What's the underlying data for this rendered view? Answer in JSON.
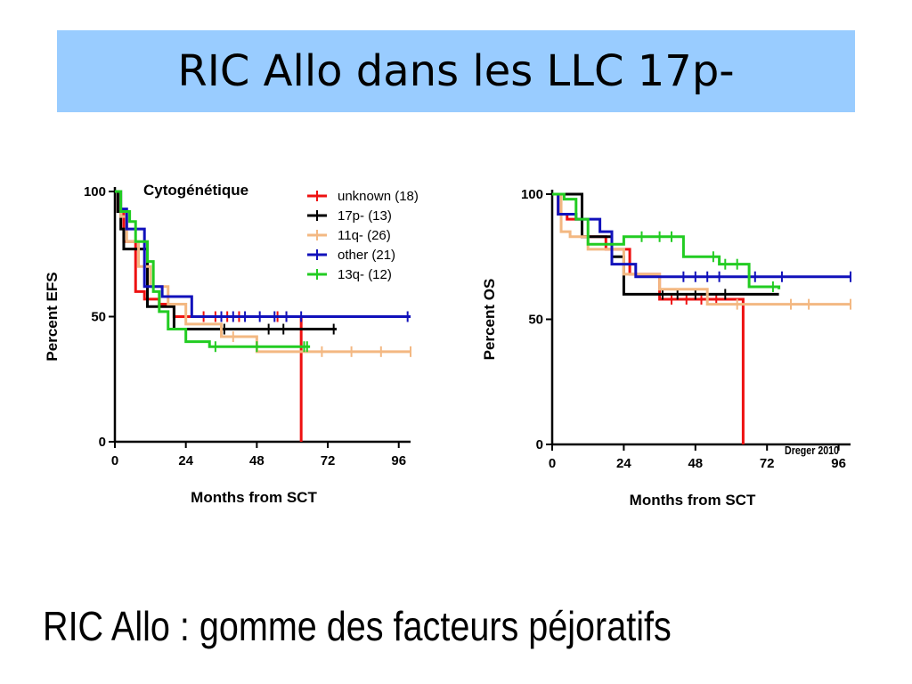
{
  "slide": {
    "title": "RIC Allo dans les LLC 17p-",
    "footer": "RIC Allo : gomme des facteurs péjoratifs",
    "citation": "Dreger 2010"
  },
  "chart_data": [
    {
      "type": "line",
      "title": "Cytogénétique",
      "xlabel": "Months from SCT",
      "ylabel": "Percent EFS",
      "xlim": [
        0,
        100
      ],
      "ylim": [
        0,
        100
      ],
      "xticks": [
        0,
        24,
        48,
        72,
        96
      ],
      "yticks": [
        0,
        50,
        100
      ],
      "legend_position": "top-right",
      "series": [
        {
          "name": "unknown (18)",
          "color": "#ee1111",
          "x": [
            0,
            1,
            3,
            7,
            10,
            15,
            20,
            24,
            63,
            63
          ],
          "y": [
            100,
            92,
            80,
            60,
            57,
            55,
            50,
            50,
            50,
            0
          ],
          "censored_x": [
            30,
            34,
            38,
            42,
            55,
            58
          ]
        },
        {
          "name": "17p- (13)",
          "color": "#000000",
          "x": [
            0,
            1,
            2,
            3,
            6,
            11,
            15,
            20,
            75
          ],
          "y": [
            100,
            92,
            85,
            77,
            77,
            54,
            54,
            45,
            45
          ],
          "censored_x": [
            37,
            52,
            57,
            74
          ]
        },
        {
          "name": "11q- (26)",
          "color": "#f3b882",
          "x": [
            0,
            2,
            4,
            8,
            12,
            18,
            24,
            36,
            48,
            100
          ],
          "y": [
            100,
            90,
            80,
            70,
            62,
            55,
            47,
            42,
            36,
            36
          ],
          "censored_x": [
            40,
            70,
            80,
            90,
            100
          ]
        },
        {
          "name": "other (21)",
          "color": "#1111bb",
          "x": [
            0,
            2,
            4,
            10,
            16,
            26,
            100
          ],
          "y": [
            100,
            93,
            85,
            62,
            58,
            50,
            50
          ],
          "censored_x": [
            36,
            40,
            44,
            49,
            54,
            58,
            63,
            99
          ]
        },
        {
          "name": "13q- (12)",
          "color": "#22cc22",
          "x": [
            0,
            2,
            5,
            7,
            11,
            13,
            15,
            18,
            24,
            32,
            40,
            54,
            66
          ],
          "y": [
            100,
            92,
            88,
            80,
            72,
            60,
            52,
            45,
            40,
            38,
            38,
            38,
            38
          ],
          "censored_x": [
            34,
            48,
            64,
            65
          ]
        }
      ]
    },
    {
      "type": "line",
      "title": "",
      "xlabel": "Months from SCT",
      "ylabel": "Percent OS",
      "xlim": [
        0,
        100
      ],
      "ylim": [
        0,
        100
      ],
      "xticks": [
        0,
        24,
        48,
        72,
        96
      ],
      "yticks": [
        0,
        50,
        100
      ],
      "series": [
        {
          "name": "unknown (18)",
          "color": "#ee1111",
          "x": [
            0,
            2,
            5,
            10,
            14,
            18,
            26,
            36,
            64,
            64
          ],
          "y": [
            100,
            92,
            90,
            83,
            83,
            78,
            68,
            58,
            58,
            0
          ],
          "censored_x": [
            40,
            45,
            50,
            55
          ]
        },
        {
          "name": "17p- (13)",
          "color": "#000000",
          "x": [
            0,
            10,
            14,
            20,
            24,
            76
          ],
          "y": [
            100,
            83,
            83,
            75,
            60,
            60
          ],
          "censored_x": [
            37,
            42,
            48,
            58
          ]
        },
        {
          "name": "11q- (26)",
          "color": "#f3b882",
          "x": [
            0,
            3,
            6,
            12,
            24,
            36,
            52,
            100
          ],
          "y": [
            100,
            85,
            83,
            78,
            68,
            62,
            56,
            56
          ],
          "censored_x": [
            62,
            80,
            86,
            100
          ]
        },
        {
          "name": "other (21)",
          "color": "#1111bb",
          "x": [
            0,
            2,
            8,
            16,
            20,
            28,
            100
          ],
          "y": [
            100,
            92,
            90,
            85,
            72,
            67,
            67
          ],
          "censored_x": [
            44,
            48,
            52,
            56,
            68,
            77,
            100
          ]
        },
        {
          "name": "13q- (12)",
          "color": "#22cc22",
          "x": [
            0,
            4,
            8,
            12,
            24,
            44,
            56,
            66,
            76
          ],
          "y": [
            100,
            98,
            90,
            80,
            83,
            75,
            72,
            63,
            62
          ],
          "censored_x": [
            30,
            36,
            40,
            54,
            58,
            62,
            74
          ]
        }
      ]
    }
  ]
}
